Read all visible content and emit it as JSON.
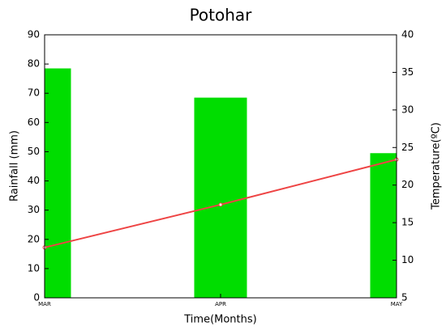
{
  "chart_data": {
    "type": "bar",
    "title": "Potohar",
    "x_label": "Time(Months)",
    "y_label": "Rainfall (mm)",
    "y2_label": "Temperature(ºC)",
    "categories": [
      "MAR",
      "APR",
      "MAY"
    ],
    "series": [
      {
        "name": "Rainfall",
        "type": "bar",
        "color": "#00dd00",
        "values": [
          78.5,
          68.5,
          49.5
        ]
      },
      {
        "name": "Temperature",
        "type": "line",
        "axis": "y2",
        "color": "#ee4444",
        "values": [
          11.7,
          17.4,
          23.4
        ]
      }
    ],
    "ylim": [
      0,
      90
    ],
    "yticks": [
      0,
      10,
      20,
      30,
      40,
      50,
      60,
      70,
      80,
      90
    ],
    "y2lim": [
      5,
      40
    ],
    "y2ticks": [
      5,
      10,
      15,
      20,
      25,
      30,
      35,
      40
    ]
  }
}
